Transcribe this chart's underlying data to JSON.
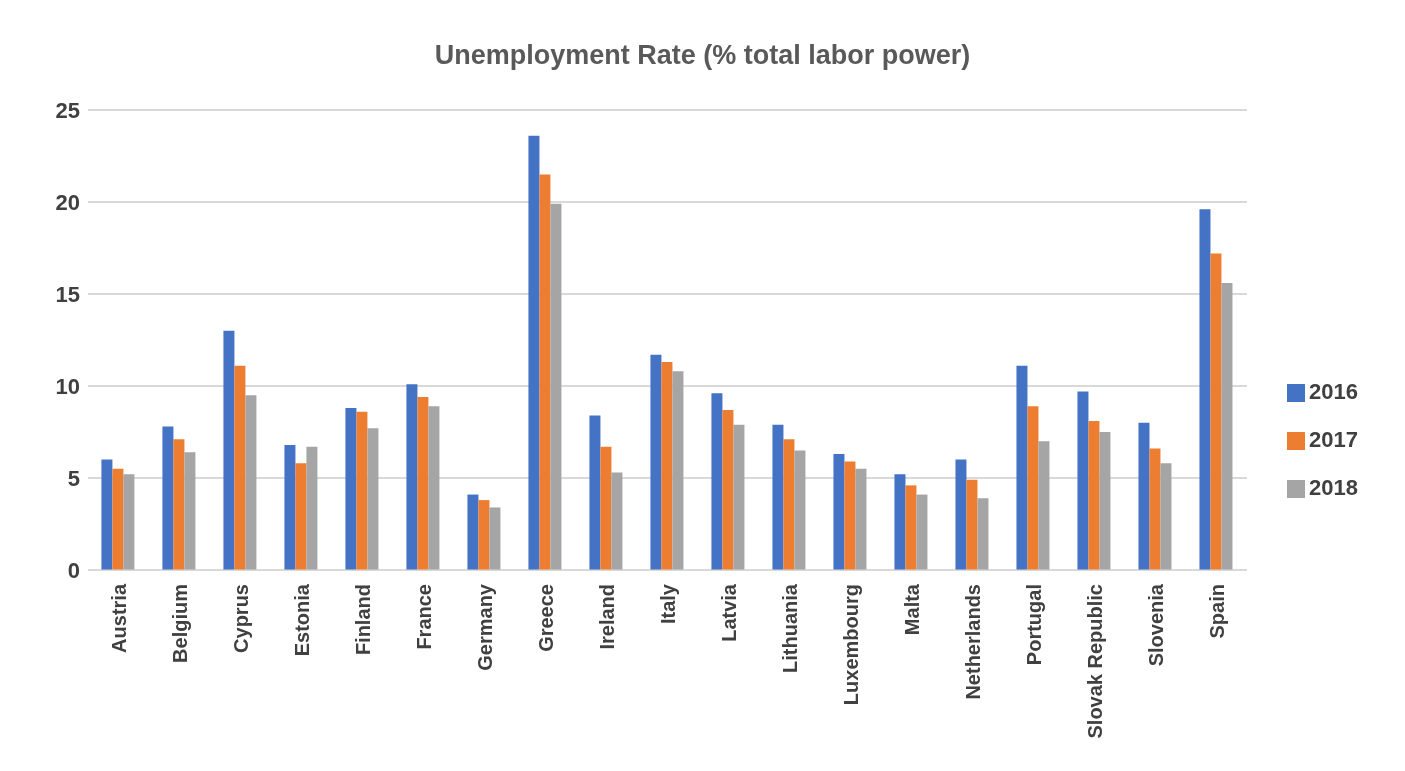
{
  "chart_data": {
    "type": "bar",
    "title": "Unemployment Rate (% total labor power)",
    "categories": [
      "Austria",
      "Belgium",
      "Cyprus",
      "Estonia",
      "Finland",
      "France",
      "Germany",
      "Greece",
      "Ireland",
      "Italy",
      "Latvia",
      "Lithuania",
      "Luxembourg",
      "Malta",
      "Netherlands",
      "Portugal",
      "Slovak Republic",
      "Slovenia",
      "Spain"
    ],
    "series": [
      {
        "name": "2016",
        "color": "#4472c4",
        "values": [
          6.0,
          7.8,
          13.0,
          6.8,
          8.8,
          10.1,
          4.1,
          23.6,
          8.4,
          11.7,
          9.6,
          7.9,
          6.3,
          5.2,
          6.0,
          11.1,
          9.7,
          8.0,
          19.6
        ]
      },
      {
        "name": "2017",
        "color": "#ed7d31",
        "values": [
          5.5,
          7.1,
          11.1,
          5.8,
          8.6,
          9.4,
          3.8,
          21.5,
          6.7,
          11.3,
          8.7,
          7.1,
          5.9,
          4.6,
          4.9,
          8.9,
          8.1,
          6.6,
          17.2
        ]
      },
      {
        "name": "2018",
        "color": "#a5a5a5",
        "values": [
          5.2,
          6.4,
          9.5,
          6.7,
          7.7,
          8.9,
          3.4,
          19.9,
          5.3,
          10.8,
          7.9,
          6.5,
          5.5,
          4.1,
          3.9,
          7.0,
          7.5,
          5.8,
          15.6
        ]
      }
    ],
    "ylim": [
      0,
      25
    ],
    "yticks": [
      0,
      5,
      10,
      15,
      20,
      25
    ],
    "grid": "y",
    "legend": "right"
  }
}
